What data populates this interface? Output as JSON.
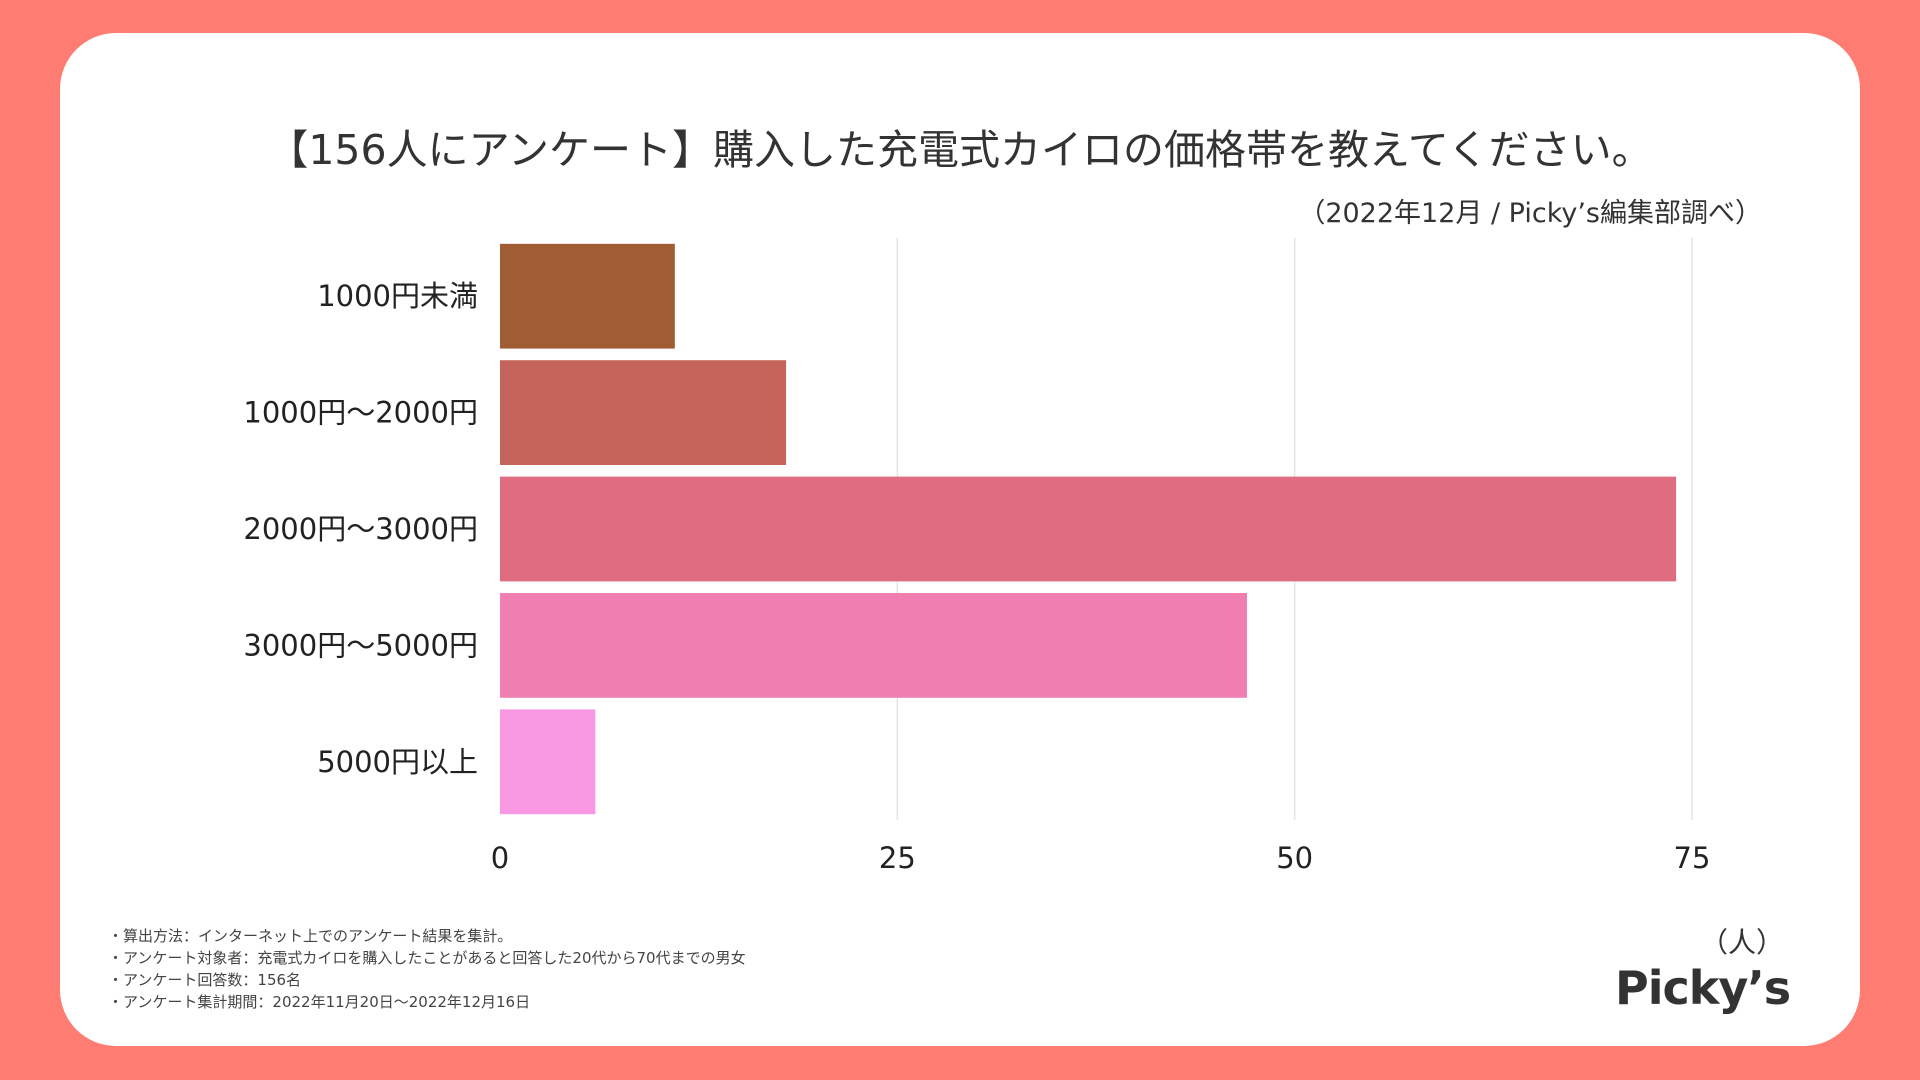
{
  "title": "【156人にアンケート】購入した充電式カイロの価格帯を教えてください。",
  "source": "（2022年12月 / Picky’s編集部調べ）",
  "unit_label": "（人）",
  "notes": [
    "・算出方法：インターネット上でのアンケート結果を集計。",
    "・アンケート対象者：充電式カイロを購入したことがあると回答した20代から70代までの男女",
    "・アンケート回答数：156名",
    "・アンケート集計期間：2022年11月20日〜2022年12月16日"
  ],
  "logo": "Picky’s",
  "chart_data": {
    "type": "bar",
    "orientation": "horizontal",
    "title": "【156人にアンケート】購入した充電式カイロの価格帯を教えてください。",
    "categories": [
      "1000円未満",
      "1000円〜2000円",
      "2000円〜3000円",
      "3000円〜5000円",
      "5000円以上"
    ],
    "values": [
      11,
      18,
      74,
      47,
      6
    ],
    "colors": [
      "#A05C32",
      "#C4645A",
      "#E06C82",
      "#F07EB0",
      "#F897E2"
    ],
    "xlim": [
      0,
      75
    ],
    "xticks": [
      0,
      25,
      50,
      75
    ],
    "xlabel": "（人）",
    "ylabel": "",
    "grid": true
  }
}
